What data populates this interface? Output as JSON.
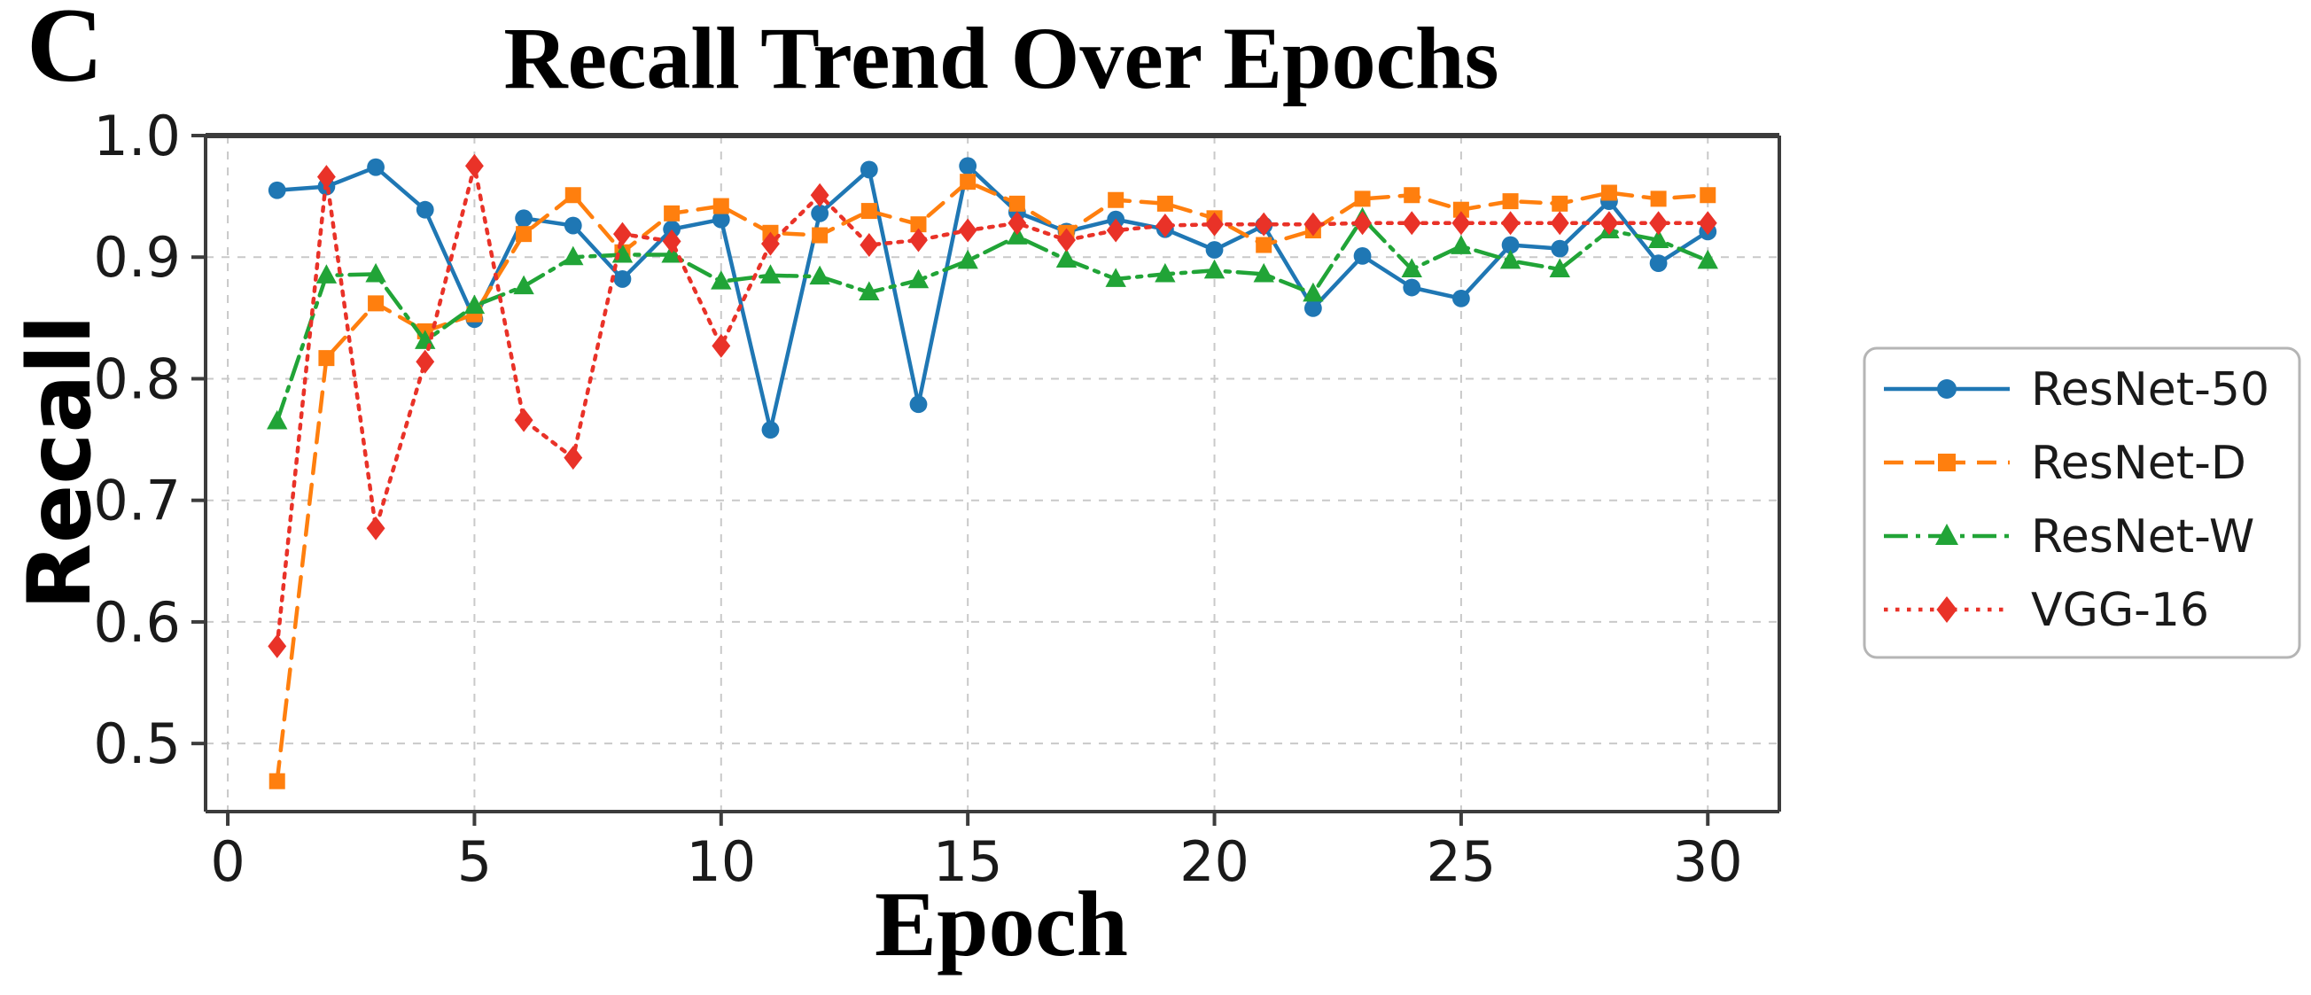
{
  "figure": {
    "panel_label": "C",
    "title": "Recall Trend Over Epochs",
    "xlabel": "Epoch",
    "ylabel": "Recall"
  },
  "chart_data": {
    "type": "line",
    "title": "Recall Trend Over Epochs",
    "xlabel": "Epoch",
    "ylabel": "Recall",
    "grid": true,
    "legend_position": "right-outside",
    "xlim": [
      -0.45,
      31.45
    ],
    "ylim": [
      0.444,
      1.0
    ],
    "xticks": [
      0,
      5,
      10,
      15,
      20,
      25,
      30
    ],
    "xtick_labels": [
      "0",
      "5",
      "10",
      "15",
      "20",
      "25",
      "30"
    ],
    "yticks": [
      1.0,
      0.9,
      0.8,
      0.7,
      0.6,
      0.5
    ],
    "ytick_labels": [
      "1.0",
      "0.9",
      "0.8",
      "0.7",
      "0.6",
      "0.5"
    ],
    "x": [
      1,
      2,
      3,
      4,
      5,
      6,
      7,
      8,
      9,
      10,
      11,
      12,
      13,
      14,
      15,
      16,
      17,
      18,
      19,
      20,
      21,
      22,
      23,
      24,
      25,
      26,
      27,
      28,
      29,
      30
    ],
    "series": [
      {
        "name": "ResNet-50",
        "color": "#1f77b4",
        "line_style": "solid",
        "marker": "circle",
        "values": [
          0.955,
          0.958,
          0.974,
          0.939,
          0.849,
          0.932,
          0.926,
          0.882,
          0.923,
          0.931,
          0.758,
          0.936,
          0.972,
          0.779,
          0.975,
          0.937,
          0.921,
          0.931,
          0.923,
          0.906,
          0.926,
          0.858,
          0.901,
          0.875,
          0.866,
          0.91,
          0.907,
          0.946,
          0.895,
          0.921
        ]
      },
      {
        "name": "ResNet-D",
        "color": "#ff7f0e",
        "line_style": "dashed",
        "marker": "square",
        "values": [
          0.469,
          0.817,
          0.862,
          0.839,
          0.853,
          0.919,
          0.951,
          0.904,
          0.936,
          0.942,
          0.92,
          0.918,
          0.938,
          0.927,
          0.962,
          0.944,
          0.92,
          0.947,
          0.944,
          0.932,
          0.91,
          0.922,
          0.948,
          0.951,
          0.939,
          0.946,
          0.944,
          0.953,
          0.948,
          0.951
        ]
      },
      {
        "name": "ResNet-W",
        "color": "#21a437",
        "line_style": "dashdot",
        "marker": "triangle",
        "values": [
          0.765,
          0.885,
          0.886,
          0.831,
          0.86,
          0.876,
          0.9,
          0.902,
          0.902,
          0.88,
          0.885,
          0.884,
          0.871,
          0.881,
          0.897,
          0.917,
          0.898,
          0.882,
          0.886,
          0.889,
          0.886,
          0.87,
          0.932,
          0.89,
          0.909,
          0.897,
          0.89,
          0.922,
          0.914,
          0.897
        ]
      },
      {
        "name": "VGG-16",
        "color": "#e93228",
        "line_style": "dotted",
        "marker": "diamond",
        "values": [
          0.58,
          0.966,
          0.677,
          0.814,
          0.975,
          0.766,
          0.735,
          0.919,
          0.913,
          0.827,
          0.911,
          0.951,
          0.91,
          0.914,
          0.922,
          0.928,
          0.914,
          0.922,
          0.926,
          0.927,
          0.927,
          0.927,
          0.928,
          0.928,
          0.928,
          0.928,
          0.928,
          0.928,
          0.928,
          0.928
        ]
      }
    ],
    "colors": {
      "grid": "#c9c9c9",
      "spine": "#3c3c3c",
      "tick_text": "#1a1a1a",
      "legend_border": "#b5b5b5"
    }
  }
}
